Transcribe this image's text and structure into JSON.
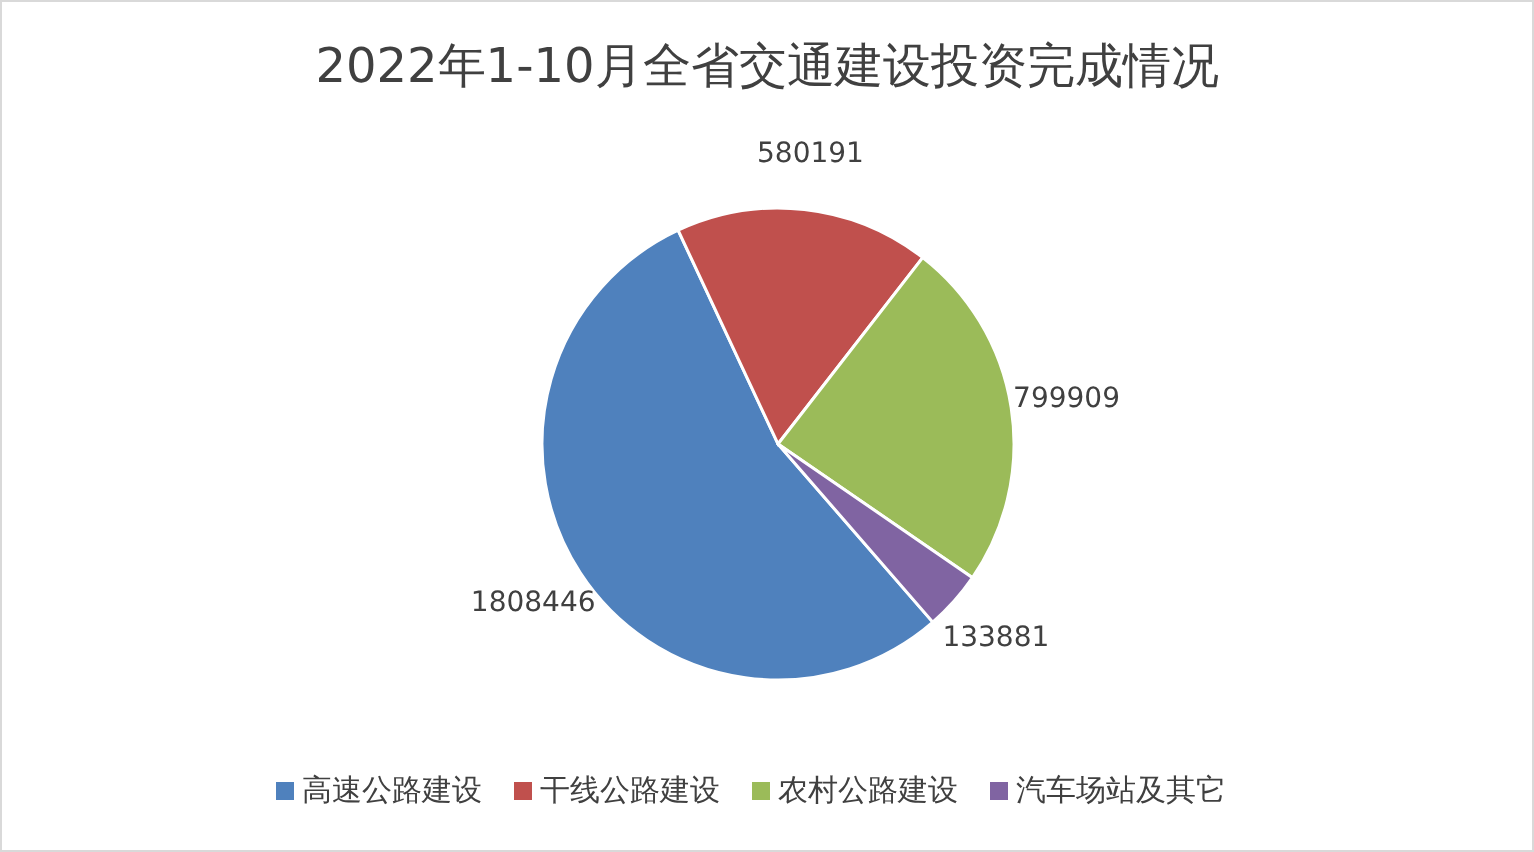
{
  "chart_data": {
    "type": "pie",
    "title": "2022年1-10月全省交通建设投资完成情况",
    "categories": [
      "高速公路建设",
      "干线公路建设",
      "农村公路建设",
      "汽车场站及其它"
    ],
    "values": [
      1808446,
      580191,
      799909,
      133881
    ],
    "colors": [
      "#4f81bd",
      "#c0504d",
      "#9bbb59",
      "#8064a2"
    ],
    "data_labels": true,
    "legend": "bottom"
  }
}
